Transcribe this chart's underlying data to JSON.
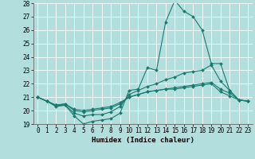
{
  "background_color": "#b2dede",
  "grid_color": "#ffffff",
  "line_color": "#1a7a6e",
  "x_values": [
    0,
    1,
    2,
    3,
    4,
    5,
    6,
    7,
    8,
    9,
    10,
    11,
    12,
    13,
    14,
    15,
    16,
    17,
    18,
    19,
    20,
    21,
    22,
    23
  ],
  "series": [
    [
      21.0,
      20.7,
      20.3,
      20.4,
      19.6,
      19.0,
      19.2,
      19.3,
      19.4,
      19.8,
      21.5,
      21.6,
      23.2,
      23.0,
      26.6,
      28.2,
      27.4,
      27.0,
      26.0,
      23.5,
      23.5,
      21.5,
      20.8,
      20.7
    ],
    [
      21.0,
      20.7,
      20.4,
      20.4,
      19.8,
      19.6,
      19.7,
      19.7,
      19.9,
      20.3,
      21.2,
      21.5,
      21.8,
      22.0,
      22.3,
      22.5,
      22.8,
      22.9,
      23.0,
      23.4,
      22.2,
      21.5,
      20.8,
      20.7
    ],
    [
      21.0,
      20.7,
      20.4,
      20.5,
      20.0,
      19.9,
      20.0,
      20.1,
      20.2,
      20.5,
      21.0,
      21.2,
      21.4,
      21.5,
      21.6,
      21.7,
      21.8,
      21.9,
      22.0,
      22.1,
      21.6,
      21.3,
      20.8,
      20.7
    ],
    [
      21.0,
      20.7,
      20.4,
      20.5,
      20.1,
      20.0,
      20.1,
      20.2,
      20.3,
      20.6,
      21.0,
      21.2,
      21.4,
      21.5,
      21.6,
      21.6,
      21.7,
      21.8,
      21.9,
      22.0,
      21.4,
      21.1,
      20.8,
      20.7
    ]
  ],
  "xlabel": "Humidex (Indice chaleur)",
  "ylim": [
    19,
    28
  ],
  "xlim": [
    -0.5,
    23.5
  ],
  "yticks": [
    19,
    20,
    21,
    22,
    23,
    24,
    25,
    26,
    27,
    28
  ],
  "xticks": [
    0,
    1,
    2,
    3,
    4,
    5,
    6,
    7,
    8,
    9,
    10,
    11,
    12,
    13,
    14,
    15,
    16,
    17,
    18,
    19,
    20,
    21,
    22,
    23
  ],
  "xlabel_fontsize": 6.5,
  "tick_fontsize": 5.5
}
